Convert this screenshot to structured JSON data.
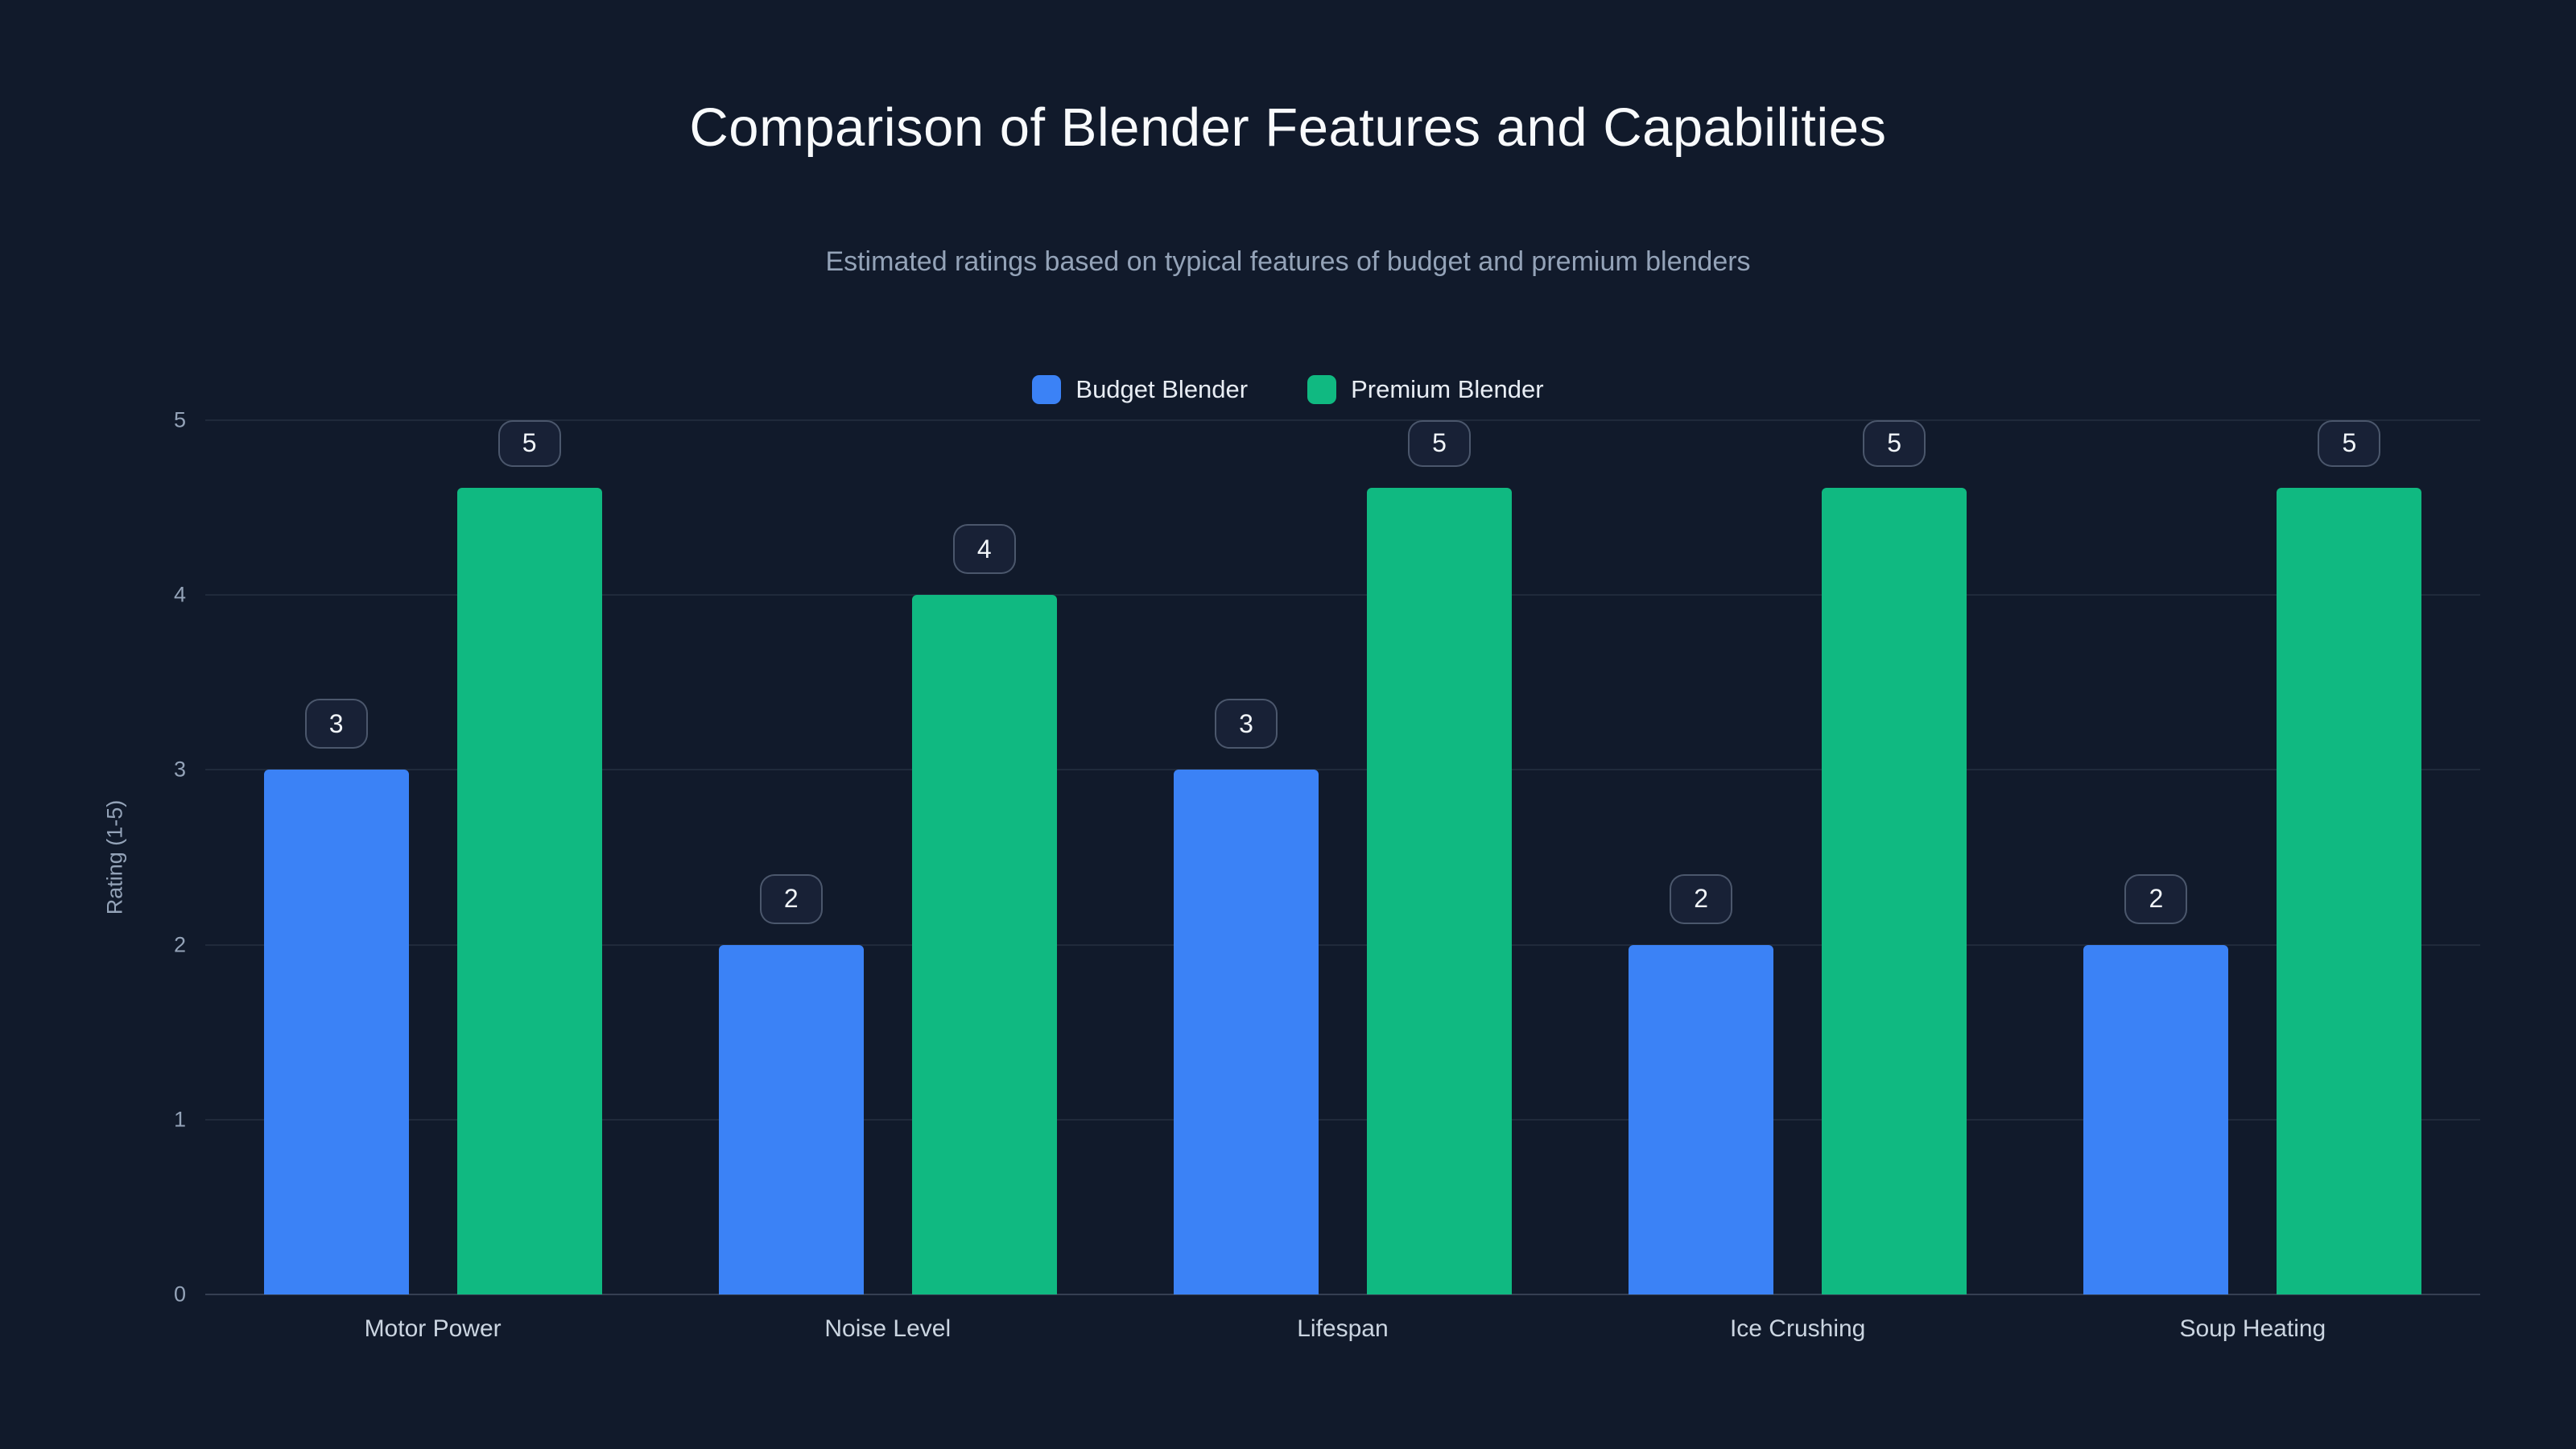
{
  "title": "Comparison of Blender Features and Capabilities",
  "subtitle": "Estimated ratings based on typical features of budget and premium blenders",
  "colors": {
    "background": "#111a2b",
    "title_text": "#f8fafc",
    "subtitle_text": "#94a3b8",
    "budget_blue": "#3b82f6",
    "premium_green": "#10b981",
    "gridline": "rgba(148,163,184,0.12)"
  },
  "chart_data": {
    "type": "bar",
    "title": "Comparison of Blender Features and Capabilities",
    "subtitle": "Estimated ratings based on typical features of budget and premium blenders",
    "categories": [
      "Motor Power",
      "Noise Level",
      "Lifespan",
      "Ice Crushing",
      "Soup Heating"
    ],
    "series": [
      {
        "name": "Budget Blender",
        "color": "#3b82f6",
        "values": [
          3,
          2,
          3,
          2,
          2
        ]
      },
      {
        "name": "Premium Blender",
        "color": "#10b981",
        "values": [
          5,
          4,
          5,
          5,
          5
        ]
      }
    ],
    "xlabel": "",
    "ylabel": "Rating (1-5)",
    "ylim": [
      0,
      5
    ],
    "yticks": [
      0,
      1,
      2,
      3,
      4,
      5
    ],
    "grid": true,
    "legend_position": "top-center",
    "value_labels": true
  }
}
